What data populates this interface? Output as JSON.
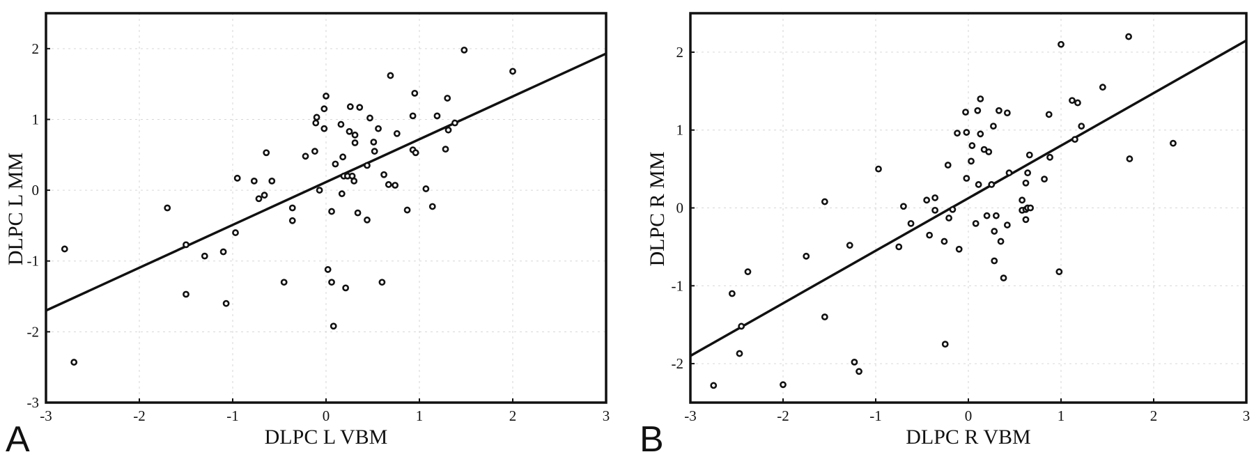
{
  "chart_data": [
    {
      "type": "scatter",
      "panel_label": "A",
      "xlabel": "DLPC L  VBM",
      "ylabel": "DLPC L  MM",
      "xlim": [
        -3,
        3
      ],
      "ylim": [
        -3,
        2.5
      ],
      "xticks": [
        -3,
        -2,
        -1,
        0,
        1,
        2,
        3
      ],
      "yticks": [
        -3,
        -2,
        -1,
        0,
        1,
        2
      ],
      "grid": true,
      "fit_line": {
        "x": [
          -3,
          3
        ],
        "y": [
          -1.7,
          1.93
        ]
      },
      "points": [
        [
          -2.8,
          -0.83
        ],
        [
          -2.7,
          -2.43
        ],
        [
          -1.7,
          -0.25
        ],
        [
          -1.5,
          -0.77
        ],
        [
          -1.5,
          -1.47
        ],
        [
          -1.3,
          -0.93
        ],
        [
          -1.1,
          -0.87
        ],
        [
          -1.07,
          -1.6
        ],
        [
          -0.97,
          -0.6
        ],
        [
          -0.95,
          0.17
        ],
        [
          -0.77,
          0.13
        ],
        [
          -0.72,
          -0.12
        ],
        [
          -0.66,
          -0.07
        ],
        [
          -0.64,
          0.53
        ],
        [
          -0.58,
          0.13
        ],
        [
          -0.45,
          -1.3
        ],
        [
          -0.36,
          -0.25
        ],
        [
          -0.36,
          -0.43
        ],
        [
          -0.22,
          0.48
        ],
        [
          -0.12,
          0.55
        ],
        [
          -0.11,
          0.95
        ],
        [
          -0.1,
          1.03
        ],
        [
          -0.07,
          0.0
        ],
        [
          -0.02,
          1.15
        ],
        [
          -0.02,
          0.87
        ],
        [
          0.0,
          1.33
        ],
        [
          0.02,
          -1.12
        ],
        [
          0.06,
          -1.3
        ],
        [
          0.06,
          -0.3
        ],
        [
          0.08,
          -1.92
        ],
        [
          0.1,
          0.37
        ],
        [
          0.16,
          0.93
        ],
        [
          0.17,
          -0.05
        ],
        [
          0.18,
          0.47
        ],
        [
          0.19,
          0.2
        ],
        [
          0.21,
          -1.38
        ],
        [
          0.23,
          0.2
        ],
        [
          0.25,
          0.83
        ],
        [
          0.26,
          1.18
        ],
        [
          0.28,
          0.2
        ],
        [
          0.3,
          0.13
        ],
        [
          0.31,
          0.78
        ],
        [
          0.31,
          0.67
        ],
        [
          0.34,
          -0.32
        ],
        [
          0.36,
          1.17
        ],
        [
          0.44,
          -0.42
        ],
        [
          0.44,
          0.35
        ],
        [
          0.47,
          1.02
        ],
        [
          0.51,
          0.68
        ],
        [
          0.52,
          0.55
        ],
        [
          0.56,
          0.87
        ],
        [
          0.6,
          -1.3
        ],
        [
          0.62,
          0.22
        ],
        [
          0.67,
          0.08
        ],
        [
          0.69,
          1.62
        ],
        [
          0.74,
          0.07
        ],
        [
          0.76,
          0.8
        ],
        [
          0.87,
          -0.28
        ],
        [
          0.93,
          1.05
        ],
        [
          0.93,
          0.57
        ],
        [
          0.95,
          1.37
        ],
        [
          0.96,
          0.53
        ],
        [
          1.07,
          0.02
        ],
        [
          1.14,
          -0.23
        ],
        [
          1.19,
          1.05
        ],
        [
          1.28,
          0.58
        ],
        [
          1.3,
          1.3
        ],
        [
          1.31,
          0.85
        ],
        [
          1.38,
          0.95
        ],
        [
          1.48,
          1.98
        ],
        [
          2.0,
          1.68
        ]
      ]
    },
    {
      "type": "scatter",
      "panel_label": "B",
      "xlabel": "DLPC R  VBM",
      "ylabel": "DLPC R  MM",
      "xlim": [
        -3,
        3
      ],
      "ylim": [
        -2.5,
        2.5
      ],
      "xticks": [
        -3,
        -2,
        -1,
        0,
        1,
        2,
        3
      ],
      "yticks": [
        -2,
        -1,
        0,
        1,
        2
      ],
      "grid": true,
      "fit_line": {
        "x": [
          -3,
          3
        ],
        "y": [
          -1.9,
          2.15
        ]
      },
      "points": [
        [
          -2.75,
          -2.28
        ],
        [
          -2.55,
          -1.1
        ],
        [
          -2.45,
          -1.52
        ],
        [
          -2.47,
          -1.87
        ],
        [
          -2.38,
          -0.82
        ],
        [
          -2.0,
          -2.27
        ],
        [
          -1.75,
          -0.62
        ],
        [
          -1.55,
          0.08
        ],
        [
          -1.55,
          -1.4
        ],
        [
          -1.28,
          -0.48
        ],
        [
          -1.23,
          -1.98
        ],
        [
          -1.18,
          -2.1
        ],
        [
          -0.97,
          0.5
        ],
        [
          -0.75,
          -0.5
        ],
        [
          -0.7,
          0.02
        ],
        [
          -0.62,
          -0.2
        ],
        [
          -0.45,
          0.1
        ],
        [
          -0.42,
          -0.35
        ],
        [
          -0.36,
          0.13
        ],
        [
          -0.36,
          -0.03
        ],
        [
          -0.26,
          -0.43
        ],
        [
          -0.25,
          -1.75
        ],
        [
          -0.22,
          0.55
        ],
        [
          -0.21,
          -0.13
        ],
        [
          -0.17,
          -0.02
        ],
        [
          -0.12,
          0.96
        ],
        [
          -0.1,
          -0.53
        ],
        [
          -0.03,
          1.23
        ],
        [
          -0.02,
          0.38
        ],
        [
          -0.02,
          0.97
        ],
        [
          0.03,
          0.6
        ],
        [
          0.04,
          0.8
        ],
        [
          0.08,
          -0.2
        ],
        [
          0.1,
          1.25
        ],
        [
          0.11,
          0.3
        ],
        [
          0.13,
          0.95
        ],
        [
          0.13,
          1.4
        ],
        [
          0.17,
          0.75
        ],
        [
          0.2,
          -0.1
        ],
        [
          0.22,
          0.72
        ],
        [
          0.25,
          0.3
        ],
        [
          0.27,
          1.05
        ],
        [
          0.28,
          -0.3
        ],
        [
          0.28,
          -0.68
        ],
        [
          0.3,
          -0.1
        ],
        [
          0.33,
          1.25
        ],
        [
          0.35,
          -0.43
        ],
        [
          0.38,
          -0.9
        ],
        [
          0.42,
          1.22
        ],
        [
          0.42,
          -0.22
        ],
        [
          0.44,
          0.45
        ],
        [
          0.58,
          0.1
        ],
        [
          0.58,
          -0.03
        ],
        [
          0.62,
          -0.02
        ],
        [
          0.62,
          0.32
        ],
        [
          0.62,
          -0.15
        ],
        [
          0.64,
          0.45
        ],
        [
          0.64,
          0.0
        ],
        [
          0.66,
          0.68
        ],
        [
          0.67,
          0.0
        ],
        [
          0.82,
          0.37
        ],
        [
          0.87,
          1.2
        ],
        [
          0.88,
          0.65
        ],
        [
          0.98,
          -0.82
        ],
        [
          1.0,
          2.1
        ],
        [
          1.12,
          1.38
        ],
        [
          1.15,
          0.88
        ],
        [
          1.18,
          1.35
        ],
        [
          1.22,
          1.05
        ],
        [
          1.45,
          1.55
        ],
        [
          1.73,
          2.2
        ],
        [
          1.74,
          0.63
        ],
        [
          2.21,
          0.83
        ]
      ]
    }
  ]
}
